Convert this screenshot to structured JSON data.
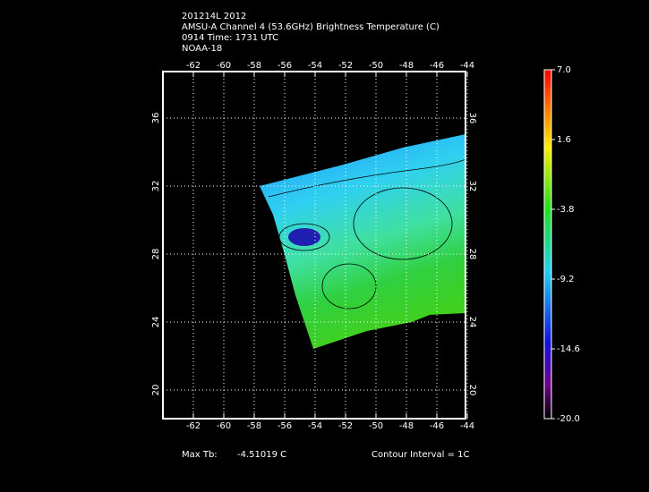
{
  "header": {
    "lines": [
      "201214L 2012",
      "AMSU-A Channel 4 (53.6GHz) Brightness Temperature (C)",
      "0914 Time: 1731 UTC",
      "NOAA-18"
    ]
  },
  "map": {
    "lon_labels": [
      "-62",
      "-60",
      "-58",
      "-56",
      "-54",
      "-52",
      "-50",
      "-48",
      "-46",
      "-44"
    ],
    "lat_labels": [
      "36",
      "32",
      "28",
      "24",
      "20"
    ]
  },
  "colorbar": {
    "labels": [
      "7.0",
      "1.6",
      "-3.8",
      "-9.2",
      "-14.6",
      "-20.0"
    ]
  },
  "footer": {
    "max_label": "Max Tb:",
    "max_value": "-4.51019  C",
    "contour": "Contour Interval = 1C"
  }
}
